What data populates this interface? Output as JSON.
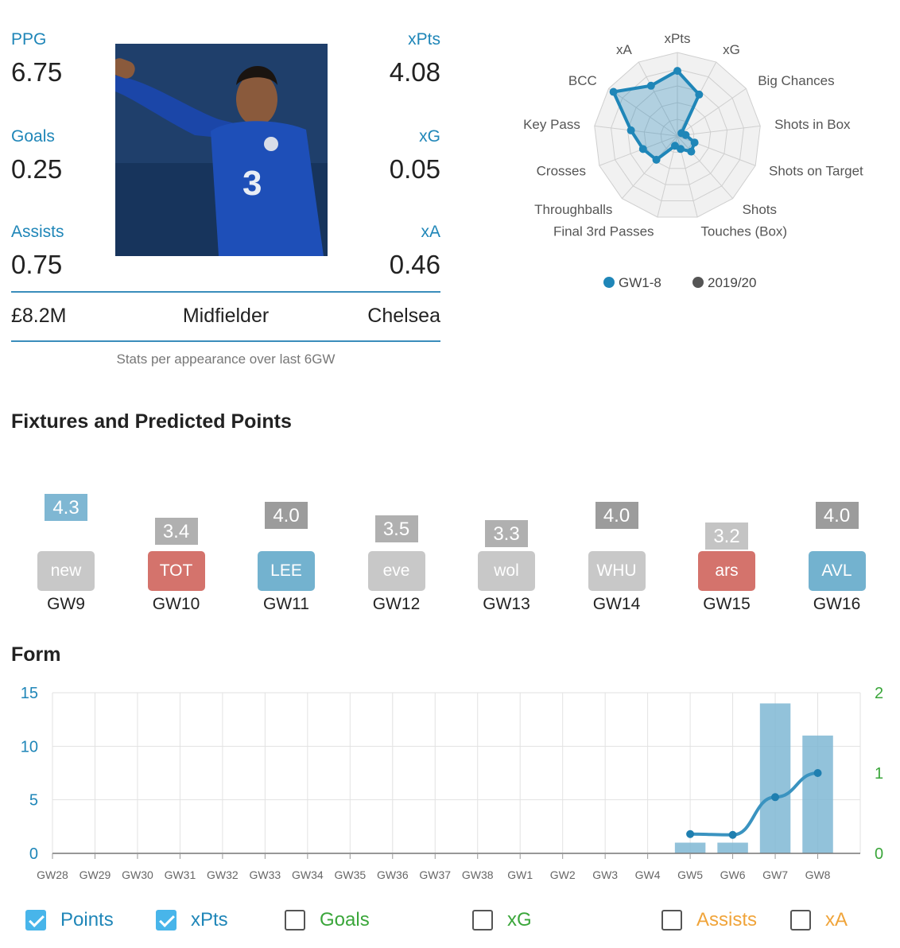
{
  "player": {
    "ppg_label": "PPG",
    "ppg": "6.75",
    "xpts_label": "xPts",
    "xpts": "4.08",
    "goals_label": "Goals",
    "goals": "0.25",
    "xg_label": "xG",
    "xg": "0.05",
    "assists_label": "Assists",
    "assists": "0.75",
    "xa_label": "xA",
    "xa": "0.46",
    "price": "£8.2M",
    "position": "Midfielder",
    "team": "Chelsea",
    "caption": "Stats per appearance over last 6GW"
  },
  "fixtures": {
    "title": "Fixtures and Predicted Points",
    "items": [
      {
        "gw": "GW9",
        "opp": "new",
        "pred": "4.3",
        "opp_color": "#c8c8c8",
        "pred_color": "#7fb7d3"
      },
      {
        "gw": "GW10",
        "opp": "TOT",
        "pred": "3.4",
        "opp_color": "#d4736c",
        "pred_color": "#b0b0b0"
      },
      {
        "gw": "GW11",
        "opp": "LEE",
        "pred": "4.0",
        "opp_color": "#73b2cf",
        "pred_color": "#9c9c9c"
      },
      {
        "gw": "GW12",
        "opp": "eve",
        "pred": "3.5",
        "opp_color": "#c8c8c8",
        "pred_color": "#b0b0b0"
      },
      {
        "gw": "GW13",
        "opp": "wol",
        "pred": "3.3",
        "opp_color": "#c8c8c8",
        "pred_color": "#b0b0b0"
      },
      {
        "gw": "GW14",
        "opp": "WHU",
        "pred": "4.0",
        "opp_color": "#c8c8c8",
        "pred_color": "#9c9c9c"
      },
      {
        "gw": "GW15",
        "opp": "ars",
        "pred": "3.2",
        "opp_color": "#d4736c",
        "pred_color": "#c4c4c4"
      },
      {
        "gw": "GW16",
        "opp": "AVL",
        "pred": "4.0",
        "opp_color": "#73b2cf",
        "pred_color": "#9c9c9c"
      }
    ]
  },
  "form": {
    "title": "Form",
    "legend": [
      {
        "label": "Points",
        "checked": true,
        "color": "#1f86b8"
      },
      {
        "label": "xPts",
        "checked": true,
        "color": "#1f86b8"
      },
      {
        "label": "Goals",
        "checked": false,
        "color": "#3aa63a"
      },
      {
        "label": "xG",
        "checked": false,
        "color": "#3aa63a"
      },
      {
        "label": "Assists",
        "checked": false,
        "color": "#f0a43a"
      },
      {
        "label": "xA",
        "checked": false,
        "color": "#f0a43a"
      }
    ]
  },
  "chart_data": [
    {
      "type": "radar",
      "axes": [
        "xPts",
        "xG",
        "Big Chances",
        "Shots in Box",
        "Shots on Target",
        "Shots",
        "Touches (Box)",
        "Final 3rd Passes",
        "Throughballs",
        "Crosses",
        "Key Pass",
        "BCC",
        "xA"
      ],
      "series": [
        {
          "name": "GW1-8",
          "color": "#1f86b8",
          "values": [
            0.78,
            0.56,
            0.06,
            0.1,
            0.22,
            0.25,
            0.16,
            0.12,
            0.38,
            0.44,
            0.56,
            0.93,
            0.68
          ]
        },
        {
          "name": "2019/20",
          "color": "#555555",
          "values": []
        }
      ],
      "legend_position": "bottom"
    },
    {
      "type": "bar+line",
      "categories": [
        "GW28",
        "GW29",
        "GW30",
        "GW31",
        "GW32",
        "GW33",
        "GW34",
        "GW35",
        "GW36",
        "GW37",
        "GW38",
        "GW1",
        "GW2",
        "GW3",
        "GW4",
        "GW5",
        "GW6",
        "GW7",
        "GW8"
      ],
      "series": [
        {
          "name": "Points",
          "type": "bar",
          "axis": "left",
          "color": "#7fb7d3",
          "values": [
            null,
            null,
            null,
            null,
            null,
            null,
            null,
            null,
            null,
            null,
            null,
            null,
            null,
            null,
            null,
            1,
            1,
            14,
            11
          ]
        },
        {
          "name": "xPts",
          "type": "line",
          "axis": "right",
          "color": "#3a93c0",
          "values": [
            null,
            null,
            null,
            null,
            null,
            null,
            null,
            null,
            null,
            null,
            null,
            null,
            null,
            null,
            null,
            0.24,
            0.23,
            0.7,
            1.0
          ]
        }
      ],
      "ylim": [
        0,
        15
      ],
      "yticks": [
        0,
        5,
        10,
        15
      ],
      "y2lim": [
        0,
        2
      ],
      "y2ticks": [
        0,
        1,
        2
      ],
      "grid": true
    }
  ]
}
